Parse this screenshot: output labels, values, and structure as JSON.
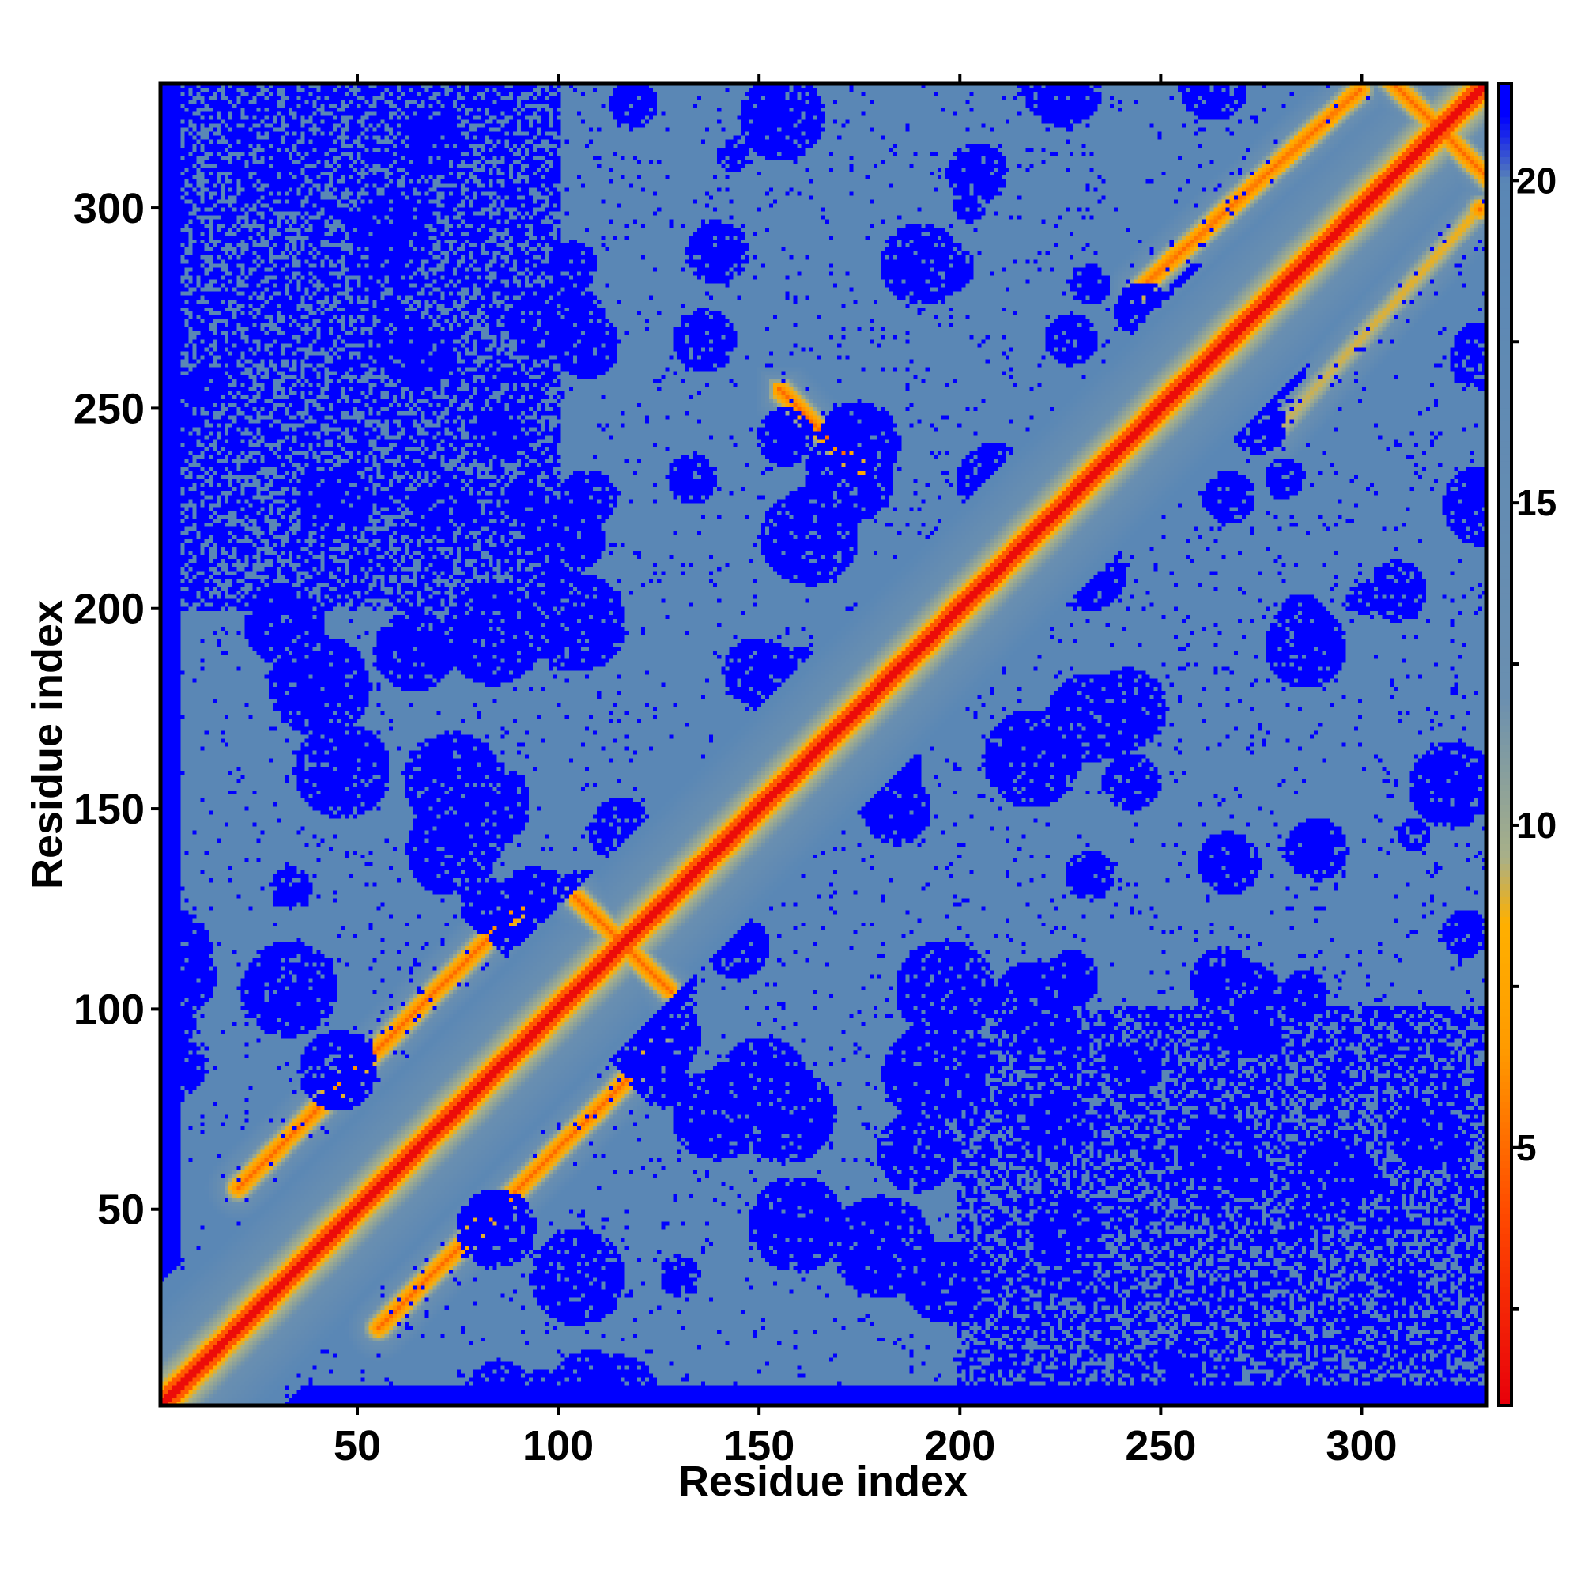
{
  "chart_data": {
    "type": "heatmap",
    "title": "",
    "xlabel": "Residue index",
    "ylabel": "Residue index",
    "n_residues": 331,
    "xlim": [
      1,
      331
    ],
    "ylim": [
      1,
      331
    ],
    "x_ticks": [
      50,
      100,
      150,
      200,
      250,
      300
    ],
    "y_ticks": [
      50,
      100,
      150,
      200,
      250,
      300
    ],
    "colorbar": {
      "range": [
        1,
        21.5
      ],
      "ticks": [
        5,
        10,
        15,
        20
      ],
      "stops": [
        {
          "value": 1.0,
          "color": "#e8000b"
        },
        {
          "value": 4.0,
          "color": "#ff4a00"
        },
        {
          "value": 6.5,
          "color": "#ff9a00"
        },
        {
          "value": 8.5,
          "color": "#ffb000"
        },
        {
          "value": 9.5,
          "color": "#a8b088"
        },
        {
          "value": 12.0,
          "color": "#6a8fb0"
        },
        {
          "value": 20.0,
          "color": "#5a87b5"
        },
        {
          "value": 21.0,
          "color": "#0000ff"
        }
      ]
    },
    "legend": "colorbar-right",
    "contact_features": [
      {
        "kind": "antiparallel",
        "center": [
          116,
          116
        ],
        "half_length": 12
      },
      {
        "kind": "antiparallel",
        "center": [
          165,
          245
        ],
        "half_length": 10
      },
      {
        "kind": "antiparallel",
        "center": [
          320,
          320
        ],
        "half_length": 15
      },
      {
        "kind": "parallel",
        "start": [
          20,
          55
        ],
        "end": [
          90,
          125
        ]
      },
      {
        "kind": "parallel",
        "start": [
          245,
          280
        ],
        "end": [
          300,
          330
        ]
      }
    ],
    "far_blocks": [
      {
        "x": [
          1,
          100
        ],
        "y": [
          200,
          331
        ]
      },
      {
        "x": [
          200,
          331
        ],
        "y": [
          1,
          100
        ]
      }
    ]
  }
}
